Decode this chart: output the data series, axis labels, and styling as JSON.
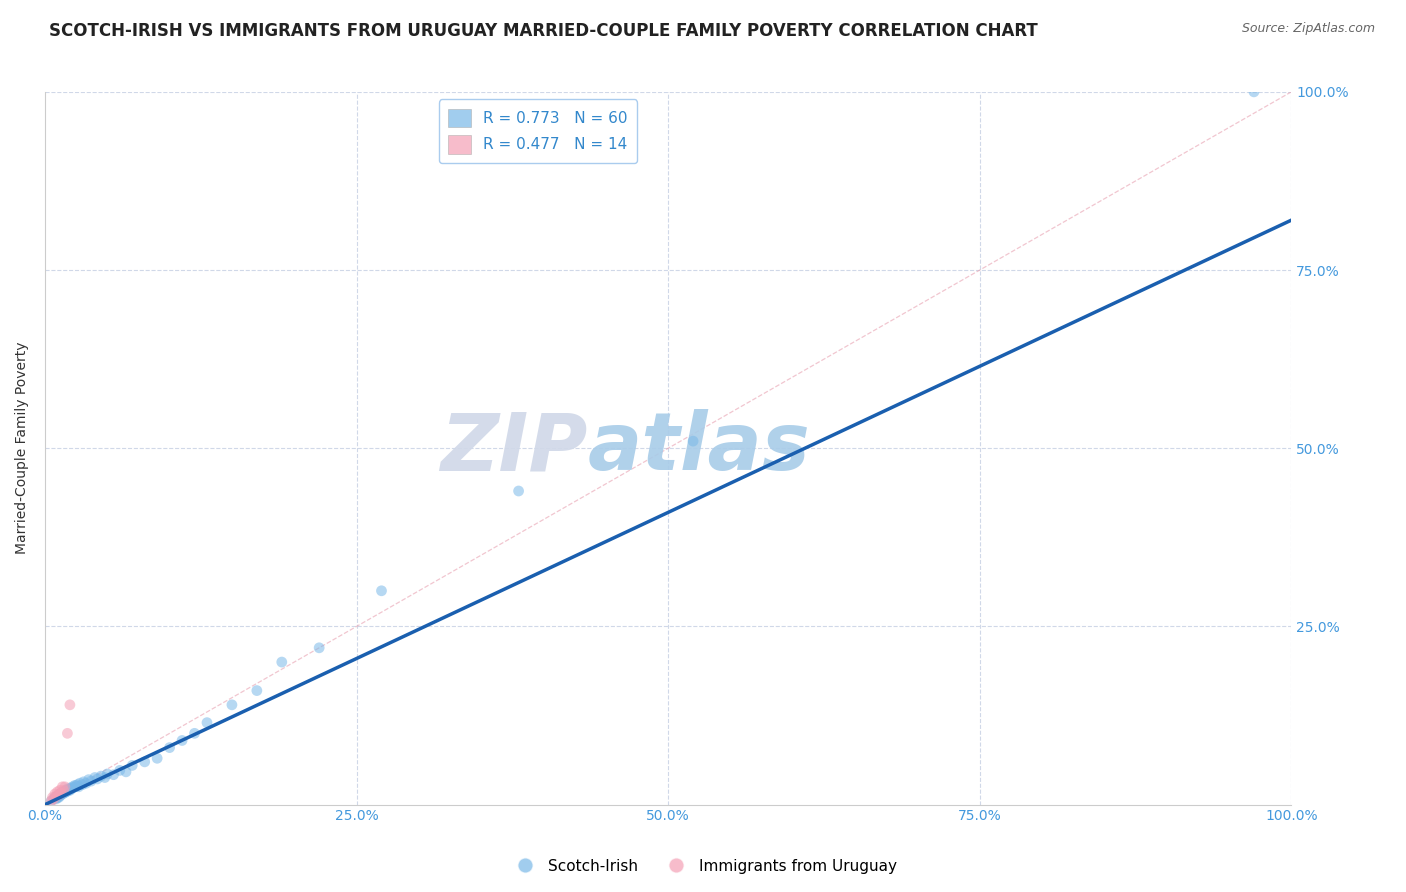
{
  "title": "SCOTCH-IRISH VS IMMIGRANTS FROM URUGUAY MARRIED-COUPLE FAMILY POVERTY CORRELATION CHART",
  "source": "Source: ZipAtlas.com",
  "ylabel": "Married-Couple Family Poverty",
  "xlim": [
    0,
    1.0
  ],
  "ylim": [
    0,
    1.0
  ],
  "xticks": [
    0.0,
    0.25,
    0.5,
    0.75,
    1.0
  ],
  "yticks": [
    0.0,
    0.25,
    0.5,
    0.75,
    1.0
  ],
  "xticklabels": [
    "0.0%",
    "25.0%",
    "50.0%",
    "75.0%",
    "100.0%"
  ],
  "yticklabels": [
    "",
    "25.0%",
    "50.0%",
    "75.0%",
    "100.0%"
  ],
  "watermark_zip": "ZIP",
  "watermark_atlas": "atlas",
  "scotch_irish_color": "#7ab8e8",
  "uruguay_color": "#f4a0b5",
  "regression_blue": "#1a5faf",
  "regression_pink_dash": "#e8a0b0",
  "R_blue": 0.773,
  "N_blue": 60,
  "R_pink": 0.477,
  "N_pink": 14,
  "scotch_irish_x": [
    0.005,
    0.007,
    0.008,
    0.009,
    0.01,
    0.01,
    0.011,
    0.011,
    0.012,
    0.012,
    0.013,
    0.013,
    0.014,
    0.015,
    0.015,
    0.016,
    0.016,
    0.017,
    0.017,
    0.018,
    0.018,
    0.019,
    0.02,
    0.02,
    0.021,
    0.022,
    0.023,
    0.024,
    0.025,
    0.026,
    0.027,
    0.028,
    0.03,
    0.031,
    0.033,
    0.035,
    0.037,
    0.04,
    0.042,
    0.045,
    0.048,
    0.05,
    0.055,
    0.06,
    0.065,
    0.07,
    0.08,
    0.09,
    0.1,
    0.11,
    0.12,
    0.13,
    0.15,
    0.17,
    0.19,
    0.22,
    0.27,
    0.38,
    0.52,
    0.97
  ],
  "scotch_irish_y": [
    0.005,
    0.008,
    0.01,
    0.008,
    0.01,
    0.012,
    0.01,
    0.013,
    0.012,
    0.015,
    0.014,
    0.016,
    0.015,
    0.016,
    0.018,
    0.017,
    0.019,
    0.018,
    0.02,
    0.019,
    0.022,
    0.021,
    0.02,
    0.023,
    0.022,
    0.025,
    0.024,
    0.027,
    0.026,
    0.028,
    0.025,
    0.03,
    0.028,
    0.032,
    0.03,
    0.035,
    0.033,
    0.038,
    0.036,
    0.04,
    0.038,
    0.043,
    0.042,
    0.048,
    0.046,
    0.055,
    0.06,
    0.065,
    0.08,
    0.09,
    0.1,
    0.115,
    0.14,
    0.16,
    0.2,
    0.22,
    0.3,
    0.44,
    0.51,
    1.0
  ],
  "uruguay_x": [
    0.005,
    0.006,
    0.007,
    0.008,
    0.009,
    0.01,
    0.011,
    0.012,
    0.013,
    0.014,
    0.015,
    0.016,
    0.018,
    0.02
  ],
  "uruguay_y": [
    0.005,
    0.01,
    0.008,
    0.015,
    0.012,
    0.018,
    0.014,
    0.02,
    0.016,
    0.025,
    0.02,
    0.025,
    0.1,
    0.14
  ],
  "background_color": "#ffffff",
  "grid_color": "#d0d8e8",
  "title_fontsize": 12,
  "axis_label_fontsize": 10,
  "tick_fontsize": 10,
  "marker_size": 60,
  "marker_alpha": 0.55
}
